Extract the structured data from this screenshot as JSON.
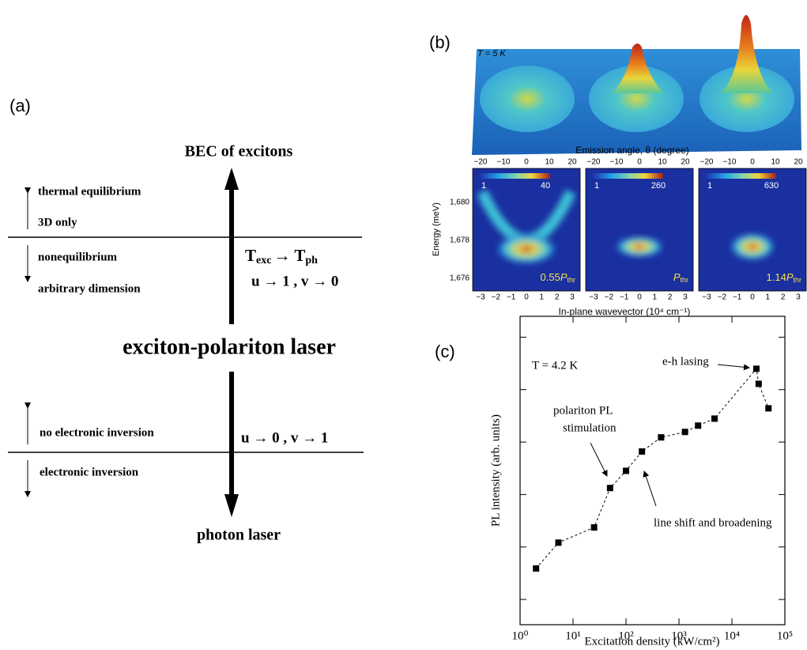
{
  "panel_a": {
    "label": "(a)",
    "top": "BEC of excitons",
    "bottom": "photon laser",
    "center": "exciton-polariton laser",
    "upper_left": [
      "thermal equilibrium",
      "3D only",
      "nonequilibrium",
      "arbitrary dimension"
    ],
    "lower_left": [
      "no electronic inversion",
      "electronic inversion"
    ],
    "relation": [
      "T",
      "exc",
      "→ T",
      "ph"
    ],
    "upper_limit": "u → 1 , v → 0",
    "lower_limit": "u → 0 , v → 1"
  },
  "panel_b": {
    "label": "(b)",
    "temperature": "T = 5 K",
    "top_axis_label": "Emission angle, θ (degree)",
    "top_ticks": [
      "−20",
      "−10",
      "0",
      "10",
      "20"
    ],
    "y_axis_label": "Energy (meV)",
    "y_ticks": [
      "1,680",
      "1,678",
      "1,676"
    ],
    "x_ticks": [
      "−3",
      "−2",
      "−1",
      "0",
      "1",
      "2",
      "3"
    ],
    "x_axis_label": "In-plane wavevector (10⁴ cm⁻¹)",
    "maps": [
      {
        "scale_min": "1",
        "scale_max": "40",
        "coef": "0.55",
        "sym": "P",
        "sub": "thr"
      },
      {
        "scale_min": "1",
        "scale_max": "260",
        "sym": "P",
        "sub": "thr"
      },
      {
        "scale_min": "1",
        "scale_max": "630",
        "coef": "1.14",
        "sym": "P",
        "sub": "thr"
      }
    ]
  },
  "chart_data": {
    "type": "line",
    "label": "(c)",
    "x_label": "Excitation density  (kW/cm²)",
    "y_label": "PL intensity  (arb. units)",
    "annotations": {
      "temperature": "T = 4.2 K",
      "lasing": "e-h lasing",
      "stimulation": [
        "polariton PL",
        "stimulation"
      ],
      "shift": "line shift and broadening"
    },
    "x": [
      2,
      5.3,
      25,
      50,
      100,
      200,
      460,
      1300,
      2300,
      4700,
      29000,
      32000,
      49000
    ],
    "values": [
      39,
      121,
      236,
      1330,
      2830,
      6610,
      12300,
      15600,
      20600,
      28000,
      250000,
      129000,
      44000
    ],
    "color": "#000000",
    "log_x": true,
    "log_y": true,
    "xlim": [
      1,
      100000
    ],
    "xticks": [
      {
        "value": 1,
        "label": "10⁰"
      },
      {
        "value": 10,
        "label": "10¹"
      },
      {
        "value": 100,
        "label": "10²"
      },
      {
        "value": 1000,
        "label": "10³"
      },
      {
        "value": 10000,
        "label": "10⁴"
      },
      {
        "value": 100000,
        "label": "10⁵"
      }
    ],
    "ylim": [
      3.3,
      2500000
    ],
    "yticks": [
      10,
      100,
      1000,
      10000,
      100000,
      1000000
    ]
  }
}
